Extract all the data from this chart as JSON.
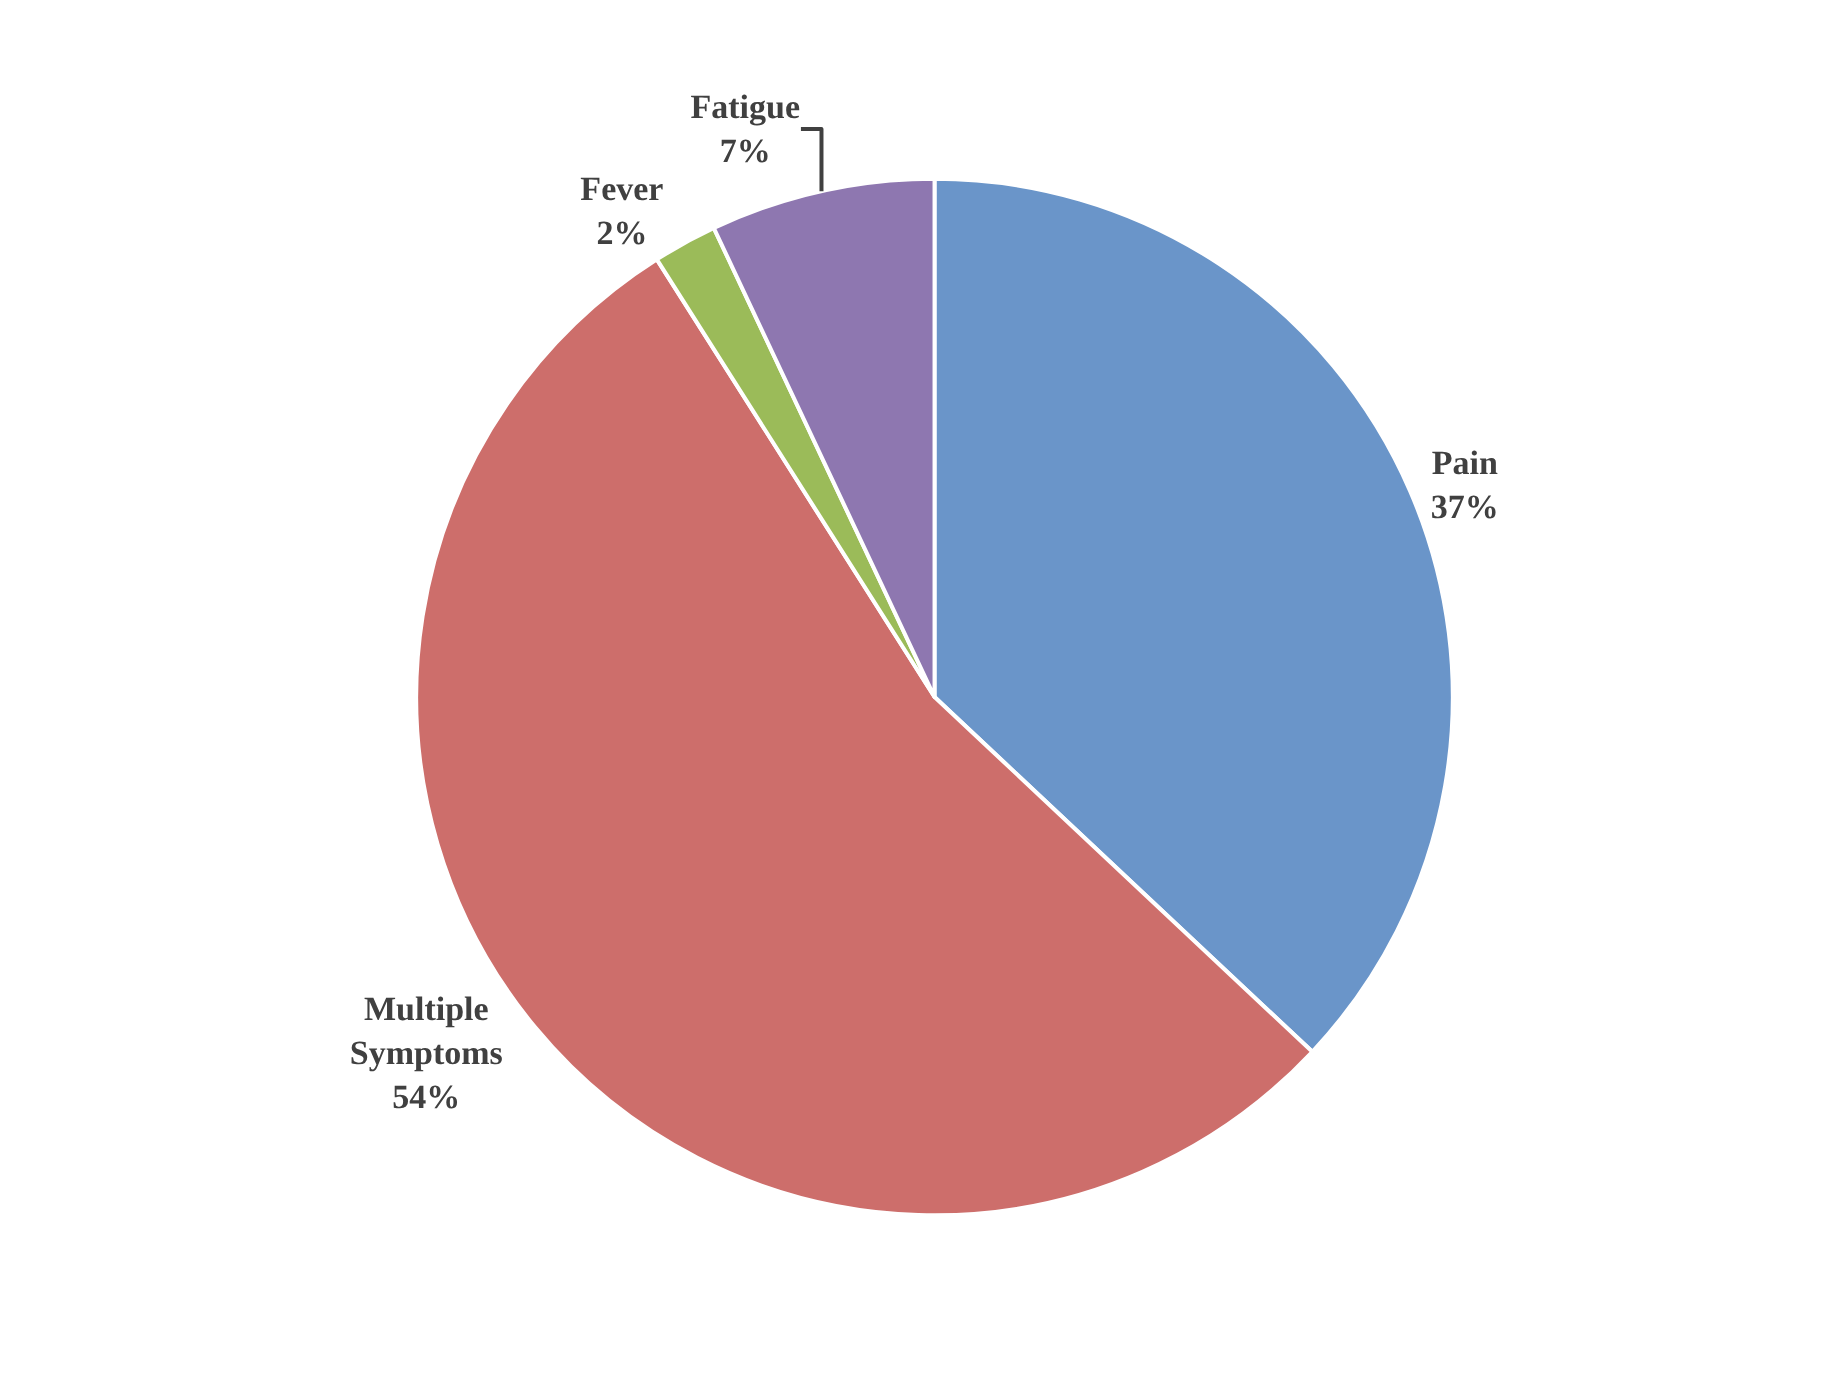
{
  "chart_data": {
    "type": "pie",
    "categories": [
      "Pain",
      "Multiple Symptoms",
      "Fever",
      "Fatigue"
    ],
    "values": [
      37,
      54,
      2,
      7
    ],
    "colors": [
      "#6a95c9",
      "#cd6e6b",
      "#9bbb59",
      "#8e77b0"
    ],
    "value_labels": [
      "37%",
      "54%",
      "2%",
      "7%"
    ],
    "legend": false
  }
}
